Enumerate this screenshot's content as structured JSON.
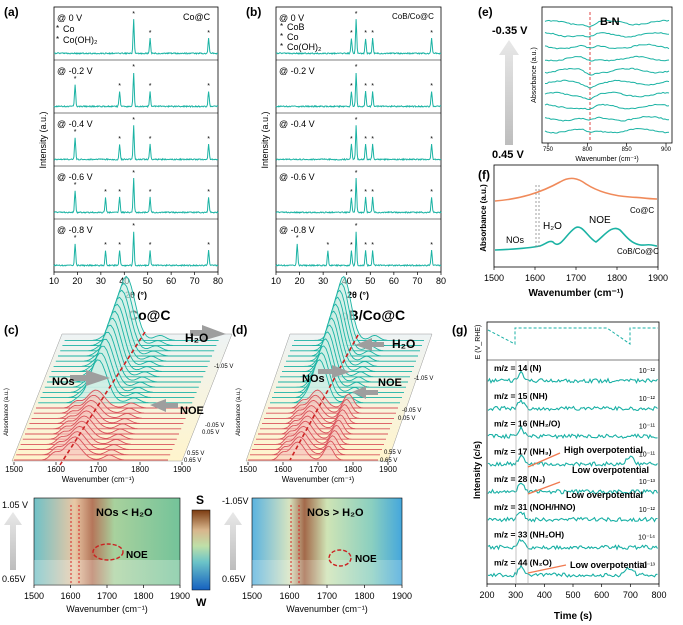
{
  "chart_data": [
    {
      "panel": "(a)",
      "type": "line",
      "title": "Co@C",
      "xlabel": "2θ (°)",
      "ylabel": "Intensity (a.u.)",
      "xlim": [
        10,
        80
      ],
      "xticks": [
        "10",
        "20",
        "30",
        "40",
        "50",
        "60",
        "70",
        "80"
      ],
      "legend": [
        {
          "marker": "*",
          "name": "Co"
        },
        {
          "marker": "*",
          "name": "Co(OH)₂"
        }
      ],
      "series": [
        {
          "name": "@ 0 V",
          "peaks": [
            44,
            51,
            76
          ]
        },
        {
          "name": "@ -0.2 V",
          "peaks": [
            19,
            38,
            44,
            51,
            76
          ]
        },
        {
          "name": "@ -0.4 V",
          "peaks": [
            19,
            38,
            44,
            51,
            76
          ]
        },
        {
          "name": "@ -0.6 V",
          "peaks": [
            19,
            32,
            38,
            44,
            51,
            76
          ]
        },
        {
          "name": "@ -0.8 V",
          "peaks": [
            19,
            32,
            38,
            44,
            51,
            76
          ]
        }
      ]
    },
    {
      "panel": "(b)",
      "type": "line",
      "title": "CoB/Co@C",
      "xlabel": "2θ (°)",
      "ylabel": "Intensity (a.u.)",
      "xlim": [
        10,
        80
      ],
      "xticks": [
        "10",
        "20",
        "30",
        "40",
        "50",
        "60",
        "70",
        "80"
      ],
      "legend": [
        {
          "marker": "*",
          "name": "CoB"
        },
        {
          "marker": "*",
          "name": "Co"
        },
        {
          "marker": "*",
          "name": "Co(OH)₂"
        }
      ],
      "series": [
        {
          "name": "@ 0 V",
          "peaks": [
            42,
            44,
            48,
            51,
            76
          ]
        },
        {
          "name": "@ -0.2 V",
          "peaks": [
            42,
            44,
            48,
            51,
            76
          ]
        },
        {
          "name": "@ -0.4 V",
          "peaks": [
            42,
            44,
            48,
            51,
            76
          ]
        },
        {
          "name": "@ -0.6 V",
          "peaks": [
            42,
            44,
            48,
            51,
            76
          ]
        },
        {
          "name": "@ -0.8 V",
          "peaks": [
            19,
            32,
            42,
            44,
            48,
            51,
            76
          ]
        }
      ]
    },
    {
      "panel": "(c)",
      "type": "area",
      "title": "Co@C",
      "xlabel": "Wavenumber (cm⁻¹)",
      "ylabel": "Absorbance (a.u.)",
      "xlim": [
        1500,
        1900
      ],
      "xticks": [
        "1500",
        "1600",
        "1700",
        "1800",
        "1900"
      ],
      "annotations": [
        "H₂O",
        "NOs",
        "NOE"
      ],
      "potentials": [
        "-1.05 V",
        "-0.05 V",
        "0.05 V",
        "0.55 V",
        "0.65 V"
      ],
      "map_ylabels": [
        "1.05 V",
        "0.65V"
      ],
      "map_annotation": "NOs < H₂O"
    },
    {
      "panel": "(d)",
      "type": "area",
      "title": "CoB/Co@C",
      "xlabel": "Wavenumber (cm⁻¹)",
      "ylabel": "Absorbance (a.u.)",
      "xlim": [
        1500,
        1900
      ],
      "xticks": [
        "1500",
        "1600",
        "1700",
        "1800",
        "1900"
      ],
      "annotations": [
        "H₂O",
        "NOs",
        "NOE"
      ],
      "potentials": [
        "-1.05 V",
        "-0.05 V",
        "0.05 V",
        "0.55 V",
        "0.65 V"
      ],
      "map_ylabels": [
        "-1.05V",
        "0.65V"
      ],
      "map_annotation": "NOs > H₂O",
      "colorbar": {
        "top": "S",
        "bottom": "W"
      }
    },
    {
      "panel": "(e)",
      "type": "line",
      "title": "B-N",
      "xlabel": "Wavenumber (cm⁻¹)",
      "ylabel": "Absorbance (a.u.)",
      "xlim": [
        750,
        900
      ],
      "xticks": [
        "750",
        "800",
        "850",
        "900"
      ],
      "potential_range": [
        "-0.35 V",
        "0.45 V"
      ]
    },
    {
      "panel": "(f)",
      "type": "line",
      "xlabel": "Wavenumber (cm⁻¹)",
      "ylabel": "Absorbance (a.u.)",
      "xlim": [
        1500,
        1900
      ],
      "xticks": [
        "1500",
        "1600",
        "1700",
        "1800",
        "1900"
      ],
      "series": [
        {
          "name": "Co@C",
          "color": "#f08a5a"
        },
        {
          "name": "CoB/Co@C",
          "color": "#1bb3a4"
        }
      ],
      "annotations": [
        "NOs",
        "H₂O",
        "NOE"
      ]
    },
    {
      "panel": "(g)",
      "type": "line",
      "xlabel": "Time (s)",
      "ylabel": "Intensity (c/s)",
      "ylabel_top": "E (V_RHE)",
      "xlim": [
        200,
        800
      ],
      "xticks": [
        "200",
        "300",
        "400",
        "500",
        "600",
        "700",
        "800"
      ],
      "series": [
        {
          "name": "m/z = 14 (N)",
          "scale": "10⁻¹²"
        },
        {
          "name": "m/z = 15 (NH)",
          "scale": "10⁻¹²"
        },
        {
          "name": "m/z = 16 (NH₂/O)",
          "scale": "10⁻¹¹"
        },
        {
          "name": "m/z = 17 (NH₃)",
          "scale": "10⁻¹¹"
        },
        {
          "name": "m/z = 28 (N₂)",
          "scale": "10⁻¹³"
        },
        {
          "name": "m/z = 31 (NOH/HNO)",
          "scale": "10⁻¹²"
        },
        {
          "name": "m/z = 33 (NH₂OH)",
          "scale": "10⁻¹⁴"
        },
        {
          "name": "m/z = 44 (N₂O)",
          "scale": "10⁻¹³"
        }
      ],
      "annotations": [
        "High overpotential",
        "Low overpotential",
        "Low overpotential",
        "Low overpotential"
      ]
    }
  ]
}
